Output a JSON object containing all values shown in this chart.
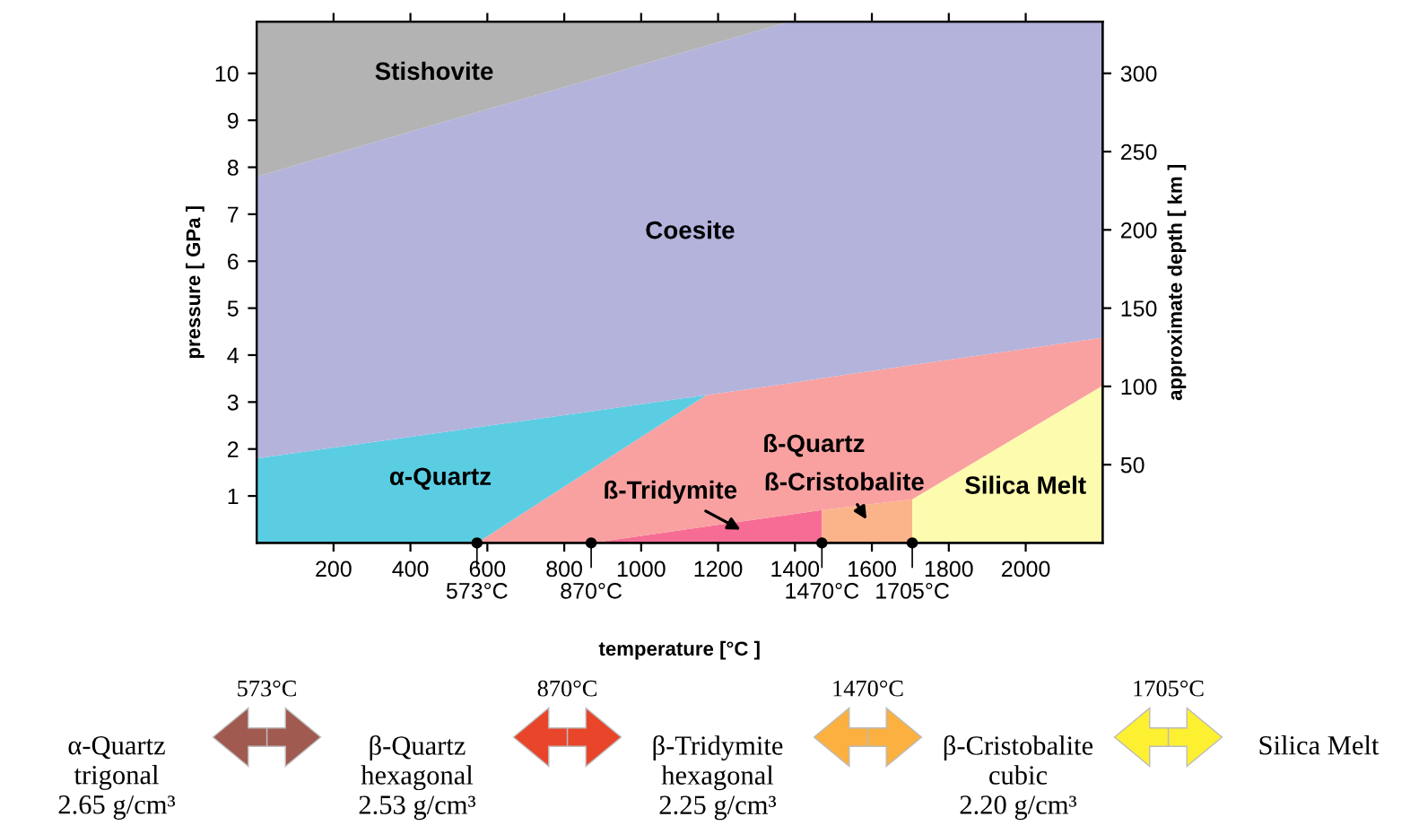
{
  "chart_data": {
    "type": "area",
    "stacked": true,
    "xlabel": "temperature [°C ]",
    "ylabel": "pressure [ GPa ]",
    "y2label": "approximate depth [ km ]",
    "xlim": [
      0,
      2200
    ],
    "xticks": [
      200,
      400,
      600,
      800,
      1000,
      1200,
      1400,
      1600,
      1800,
      2000
    ],
    "ylim": [
      0,
      11.1
    ],
    "yticks": [
      1,
      2,
      3,
      4,
      5,
      6,
      7,
      8,
      9,
      10
    ],
    "y2lim": [
      0,
      333
    ],
    "y2ticks": [
      50,
      100,
      150,
      200,
      250,
      300
    ],
    "grid": false,
    "legend": false,
    "x": [
      0,
      573,
      870,
      1170,
      1385,
      1470,
      1470,
      1705,
      1705,
      2200
    ],
    "series": [
      {
        "name": "ß-Tridymite",
        "color": "#f76c94",
        "values": [
          null,
          null,
          0,
          0.35,
          0.6,
          0.7,
          null,
          null,
          null,
          null
        ]
      },
      {
        "name": "ß-Cristobalite",
        "color": "#fbb38a",
        "values": [
          null,
          null,
          null,
          null,
          null,
          null,
          0.7,
          0.93,
          null,
          null
        ]
      },
      {
        "name": "Silica Melt",
        "color": "#fdfbae",
        "values": [
          null,
          null,
          null,
          null,
          null,
          null,
          null,
          null,
          0.93,
          3.35
        ]
      },
      {
        "name": "ß-Quartz",
        "color": "#f9a1a0",
        "values": [
          null,
          0,
          1.57,
          2.8,
          2.8,
          2.81,
          2.81,
          2.86,
          2.86,
          1.02
        ]
      },
      {
        "name": "α-Quartz",
        "color": "#5bcde3",
        "values": [
          1.8,
          2.46,
          1.23,
          0,
          null,
          null,
          null,
          null,
          null,
          null
        ]
      },
      {
        "name": "Coesite",
        "color": "#b3b3dc",
        "values": [
          6.0,
          6.71,
          7.07,
          7.44,
          7.7,
          7.59,
          7.59,
          7.31,
          7.31,
          6.73
        ]
      },
      {
        "name": "Stishovite",
        "color": "#b3b3b3",
        "values": [
          3.3,
          1.93,
          1.23,
          0.51,
          0,
          null,
          null,
          null,
          null,
          null
        ]
      }
    ],
    "annotations": [
      {
        "text": "573°C",
        "x": 573,
        "y": 0
      },
      {
        "text": "870°C",
        "x": 870,
        "y": 0
      },
      {
        "text": "1470°C",
        "x": 1470,
        "y": 0
      },
      {
        "text": "1705°C",
        "x": 1705,
        "y": 0
      },
      "α-Quartz\ntrigonal\n2.65 g/cm³",
      "573°C",
      "β-Quartz\nhexagonal\n2.53 g/cm³",
      "870°C",
      "β-Tridymite\nhexagonal\n2.25 g/cm³",
      "1470°C",
      "β-Cristobalite\ncubic\n2.20 g/cm³",
      "1705°C",
      "Silica Melt"
    ]
  }
}
